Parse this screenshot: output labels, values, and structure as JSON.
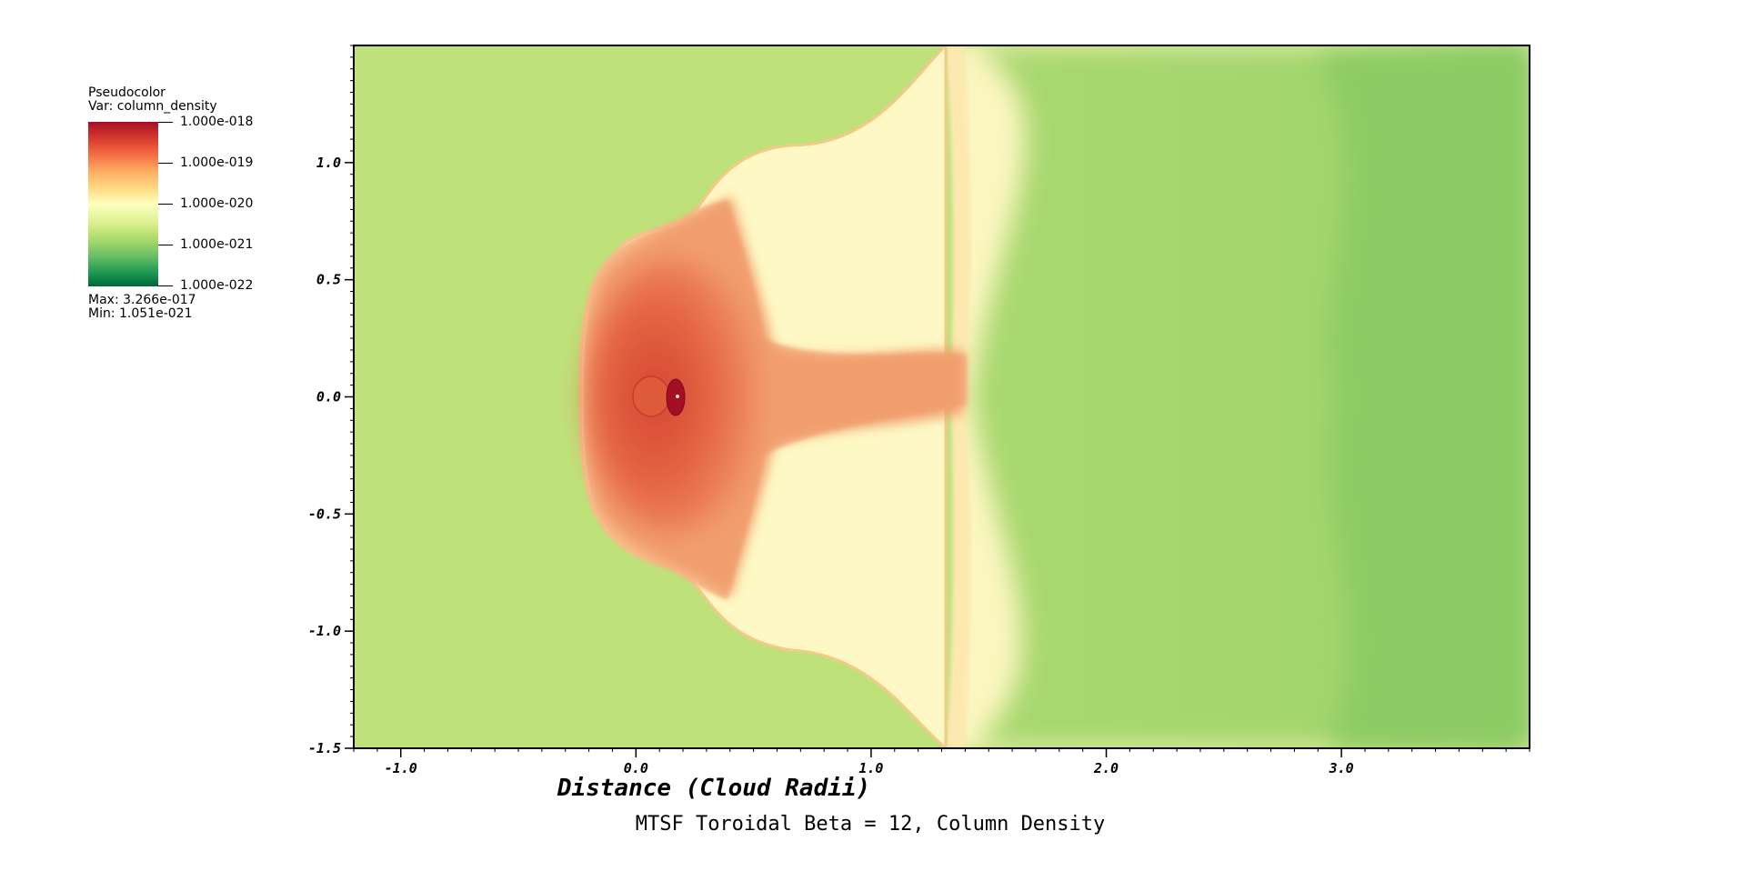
{
  "legend": {
    "plot_type": "Pseudocolor",
    "var_label": "Var: column_density",
    "ticks": [
      "1.000e-018",
      "1.000e-019",
      "1.000e-020",
      "1.000e-021",
      "1.000e-022"
    ],
    "max_label": "Max:  3.266e-017",
    "min_label": "Min:  1.051e-021"
  },
  "chart_data": {
    "type": "heatmap",
    "title": "MTSF Toroidal Beta = 12, Column Density",
    "xlabel": "Distance (Cloud Radii)",
    "ylabel": "",
    "xlim": [
      -1.2,
      3.8
    ],
    "ylim": [
      -1.5,
      1.5
    ],
    "xticks": [
      -1.0,
      0.0,
      1.0,
      2.0,
      3.0
    ],
    "xtick_labels": [
      "-1.0",
      "0.0",
      "1.0",
      "2.0",
      "3.0"
    ],
    "yticks": [
      1.0,
      0.5,
      0.0,
      -0.5,
      -1.0,
      -1.5
    ],
    "ytick_labels": [
      "1.0",
      "0.5",
      "0.0",
      "-0.5",
      "-1.0",
      "-1.5"
    ],
    "colormap": "RdYlGn (reversed)",
    "color_scale": "log",
    "color_range": [
      1e-22,
      1e-18
    ],
    "data_max": 3.266e-17,
    "data_min": 1.051e-21
  },
  "colors": {
    "background_green": "#bfe17a",
    "wake_green": "#9fd26e",
    "far_green": "#8ccb64",
    "cream": "#fff6c2",
    "light_orange": "#fbd39a",
    "orange": "#f2a370",
    "red_orange": "#e4603f",
    "deep_red": "#b8152d"
  }
}
